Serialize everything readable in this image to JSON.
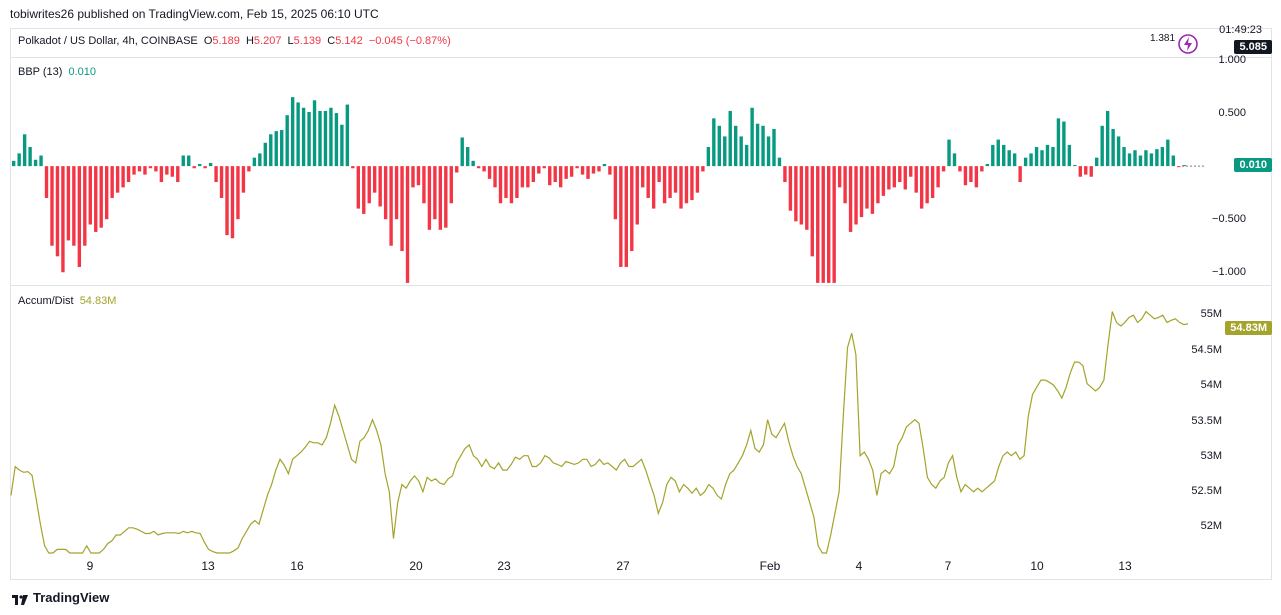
{
  "header": {
    "publisher": "tobiwrites26 published on TradingView.com, Feb 15, 2025 06:10 UTC",
    "symbol": "Polkadot / US Dollar, 4h, COINBASE",
    "o_label": "O",
    "o_value": "5.189",
    "h_label": "H",
    "h_value": "5.207",
    "l_label": "L",
    "l_value": "5.139",
    "c_label": "C",
    "c_value": "5.142",
    "change": "−0.045 (−0.87%)",
    "countdown": "01:49:23",
    "partial_price": "1.381",
    "price": "5.085"
  },
  "colors": {
    "up": "#089981",
    "down": "#f23645",
    "ad_line": "#a4a32b"
  },
  "footer": {
    "brand": "TradingView"
  },
  "chart_data": [
    {
      "type": "bar",
      "indicator": "BBP (13)",
      "current": "0.010",
      "y_ticks": [
        "1.000",
        "0.500",
        "−0.500",
        "−1.000"
      ],
      "ylim": [
        -1.12,
        1.0
      ],
      "values": [
        0.05,
        0.12,
        0.3,
        0.18,
        0.06,
        0.1,
        -0.3,
        -0.75,
        -0.85,
        -1.0,
        -0.7,
        -0.75,
        -0.95,
        -0.75,
        -0.55,
        -0.62,
        -0.58,
        -0.5,
        -0.3,
        -0.25,
        -0.2,
        -0.15,
        -0.08,
        -0.05,
        -0.08,
        -0.02,
        -0.05,
        -0.15,
        -0.08,
        -0.1,
        -0.15,
        0.1,
        0.1,
        -0.02,
        0.02,
        -0.02,
        0.03,
        -0.15,
        -0.3,
        -0.65,
        -0.68,
        -0.5,
        -0.25,
        -0.05,
        0.08,
        0.12,
        0.22,
        0.3,
        0.33,
        0.34,
        0.48,
        0.65,
        0.6,
        0.55,
        0.51,
        0.62,
        0.52,
        0.52,
        0.55,
        0.5,
        0.39,
        0.58,
        -0.02,
        -0.4,
        -0.45,
        -0.35,
        -0.25,
        -0.38,
        -0.5,
        -0.75,
        -0.5,
        -0.8,
        -1.1,
        -0.2,
        -0.18,
        -0.35,
        -0.6,
        -0.5,
        -0.6,
        -0.58,
        -0.35,
        -0.06,
        0.27,
        0.18,
        0.05,
        -0.02,
        -0.05,
        -0.12,
        -0.2,
        -0.35,
        -0.3,
        -0.35,
        -0.3,
        -0.2,
        -0.2,
        -0.15,
        -0.07,
        -0.02,
        -0.18,
        -0.15,
        -0.2,
        -0.12,
        -0.1,
        -0.02,
        -0.08,
        -0.12,
        -0.07,
        -0.05,
        0.02,
        -0.08,
        -0.5,
        -0.95,
        -0.95,
        -0.8,
        -0.55,
        -0.2,
        -0.3,
        -0.4,
        -0.15,
        -0.35,
        -0.3,
        -0.25,
        -0.4,
        -0.35,
        -0.32,
        -0.25,
        -0.05,
        0.18,
        0.45,
        0.38,
        0.28,
        0.52,
        0.38,
        0.28,
        0.2,
        0.55,
        0.4,
        0.38,
        0.28,
        0.35,
        0.08,
        -0.15,
        -0.42,
        -0.52,
        -0.55,
        -0.6,
        -0.85,
        -1.1,
        -1.1,
        -1.1,
        -1.1,
        -0.2,
        -0.35,
        -0.62,
        -0.55,
        -0.48,
        -0.4,
        -0.45,
        -0.35,
        -0.28,
        -0.22,
        -0.2,
        -0.15,
        -0.22,
        -0.1,
        -0.25,
        -0.4,
        -0.35,
        -0.3,
        -0.2,
        -0.05,
        0.25,
        0.12,
        -0.05,
        -0.18,
        -0.15,
        -0.2,
        -0.05,
        0.02,
        0.2,
        0.25,
        0.2,
        0.15,
        0.12,
        -0.15,
        0.08,
        0.12,
        0.18,
        0.15,
        0.2,
        0.18,
        0.45,
        0.42,
        0.2,
        0.01,
        -0.1,
        -0.08,
        -0.1,
        0.08,
        0.38,
        0.52,
        0.35,
        0.28,
        0.18,
        0.12,
        0.15,
        0.1,
        0.15,
        0.12,
        0.16,
        0.18,
        0.25,
        0.1,
        -0.01,
        0.01
      ]
    },
    {
      "type": "line",
      "indicator": "Accum/Dist",
      "current": "54.83M",
      "y_ticks": [
        "55M",
        "54.5M",
        "54M",
        "53.5M",
        "53M",
        "52.5M",
        "52M"
      ],
      "ylim": [
        51.65,
        55.3
      ],
      "x_ticks": [
        "9",
        "13",
        "16",
        "20",
        "23",
        "27",
        "Feb",
        "4",
        "7",
        "10",
        "13"
      ],
      "values": [
        52.45,
        52.85,
        52.8,
        52.77,
        52.78,
        52.73,
        52.4,
        52.05,
        51.75,
        51.6,
        51.6,
        51.7,
        51.7,
        51.7,
        51.6,
        51.65,
        51.63,
        51.6,
        51.75,
        51.65,
        51.6,
        51.6,
        51.7,
        51.78,
        51.82,
        51.9,
        51.9,
        51.95,
        52.0,
        52.0,
        51.98,
        51.95,
        51.92,
        51.92,
        51.95,
        51.9,
        51.92,
        51.93,
        51.93,
        51.93,
        51.92,
        51.95,
        51.93,
        51.95,
        51.93,
        51.92,
        51.8,
        51.7,
        51.67,
        51.65,
        51.62,
        51.65,
        51.62,
        51.68,
        51.72,
        51.85,
        51.95,
        52.05,
        52.1,
        52.05,
        52.25,
        52.45,
        52.6,
        52.8,
        52.95,
        52.87,
        52.75,
        52.95,
        53.0,
        53.05,
        53.12,
        53.2,
        53.18,
        53.18,
        53.15,
        53.25,
        53.45,
        53.7,
        53.55,
        53.35,
        53.15,
        52.95,
        52.9,
        53.2,
        53.25,
        53.35,
        53.5,
        53.35,
        53.15,
        52.75,
        52.5,
        51.85,
        52.35,
        52.6,
        52.55,
        52.65,
        52.72,
        52.65,
        52.5,
        52.7,
        52.65,
        52.68,
        52.62,
        52.6,
        52.68,
        52.72,
        52.9,
        53.0,
        53.1,
        53.15,
        53.0,
        52.95,
        52.85,
        52.95,
        52.85,
        52.82,
        52.9,
        52.8,
        52.8,
        52.88,
        52.98,
        52.95,
        53.0,
        53.0,
        52.85,
        52.85,
        52.9,
        53.0,
        52.97,
        52.9,
        52.88,
        52.85,
        52.92,
        52.9,
        52.88,
        52.9,
        52.95,
        52.95,
        52.85,
        52.88,
        52.95,
        52.88,
        52.9,
        52.85,
        52.8,
        52.9,
        52.95,
        52.85,
        52.85,
        52.9,
        52.95,
        52.8,
        52.62,
        52.45,
        52.2,
        52.35,
        52.6,
        52.7,
        52.65,
        52.5,
        52.6,
        52.55,
        52.48,
        52.55,
        52.45,
        52.5,
        52.6,
        52.55,
        52.45,
        52.4,
        52.6,
        52.75,
        52.8,
        52.9,
        53.0,
        53.15,
        53.35,
        53.1,
        53.05,
        53.15,
        53.5,
        53.3,
        53.25,
        53.35,
        53.45,
        53.2,
        53.0,
        52.85,
        52.75,
        52.55,
        52.35,
        52.15,
        51.75,
        51.4,
        51.5,
        51.9,
        52.2,
        52.5,
        53.55,
        54.5,
        54.7,
        54.4,
        53.0,
        53.05,
        52.95,
        52.8,
        52.45,
        52.75,
        52.8,
        52.75,
        52.85,
        53.15,
        53.25,
        53.4,
        53.45,
        53.5,
        53.45,
        53.1,
        52.7,
        52.6,
        52.55,
        52.65,
        52.7,
        52.9,
        53.0,
        52.7,
        52.5,
        52.6,
        52.55,
        52.5,
        52.55,
        52.5,
        52.55,
        52.6,
        52.65,
        52.85,
        53.0,
        53.05,
        53.0,
        53.05,
        52.95,
        53.0,
        53.55,
        53.85,
        53.95,
        54.05,
        54.05,
        54.02,
        53.98,
        53.9,
        53.8,
        53.95,
        54.15,
        54.3,
        54.3,
        54.25,
        54.0,
        53.95,
        53.9,
        53.95,
        54.05,
        54.55,
        55.0,
        54.85,
        54.8,
        54.85,
        54.92,
        54.95,
        54.85,
        54.9,
        55.0,
        54.95,
        54.9,
        54.92,
        54.95,
        54.85,
        54.88,
        54.9,
        54.85,
        54.82,
        54.83
      ]
    }
  ]
}
